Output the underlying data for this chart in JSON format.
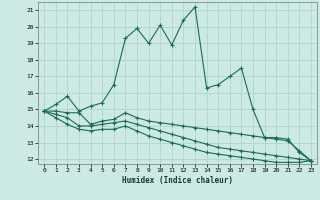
{
  "xlabel": "Humidex (Indice chaleur)",
  "background_color": "#cde9e4",
  "grid_color": "#afd4ce",
  "line_color": "#1a6b5a",
  "xlim": [
    -0.5,
    23.5
  ],
  "ylim": [
    11.7,
    21.5
  ],
  "yticks": [
    12,
    13,
    14,
    15,
    16,
    17,
    18,
    19,
    20,
    21
  ],
  "xticks": [
    0,
    1,
    2,
    3,
    4,
    5,
    6,
    7,
    8,
    9,
    10,
    11,
    12,
    13,
    14,
    15,
    16,
    17,
    18,
    19,
    20,
    21,
    22,
    23
  ],
  "series1_x": [
    0,
    1,
    2,
    3,
    4,
    5,
    6,
    7,
    8,
    9,
    10,
    11,
    12,
    13,
    14,
    15,
    16,
    17,
    18,
    19,
    20,
    21,
    22,
    23
  ],
  "series1_y": [
    14.9,
    15.3,
    15.8,
    14.9,
    15.2,
    15.4,
    16.5,
    19.3,
    19.9,
    19.0,
    20.1,
    18.9,
    20.4,
    21.2,
    16.3,
    16.5,
    17.0,
    17.5,
    15.0,
    13.3,
    13.3,
    13.2,
    12.4,
    11.9
  ],
  "series2_x": [
    0,
    1,
    2,
    3,
    4,
    5,
    6,
    7,
    8,
    9,
    10,
    11,
    12,
    13,
    14,
    15,
    16,
    17,
    18,
    19,
    20,
    21,
    22,
    23
  ],
  "series2_y": [
    14.9,
    14.9,
    14.8,
    14.8,
    14.1,
    14.3,
    14.4,
    14.8,
    14.5,
    14.3,
    14.2,
    14.1,
    14.0,
    13.9,
    13.8,
    13.7,
    13.6,
    13.5,
    13.4,
    13.3,
    13.2,
    13.1,
    12.5,
    11.9
  ],
  "series3_x": [
    0,
    1,
    2,
    3,
    4,
    5,
    6,
    7,
    8,
    9,
    10,
    11,
    12,
    13,
    14,
    15,
    16,
    17,
    18,
    19,
    20,
    21,
    22,
    23
  ],
  "series3_y": [
    14.9,
    14.7,
    14.5,
    14.0,
    14.0,
    14.1,
    14.2,
    14.3,
    14.1,
    13.9,
    13.7,
    13.5,
    13.3,
    13.1,
    12.9,
    12.7,
    12.6,
    12.5,
    12.4,
    12.3,
    12.2,
    12.1,
    12.0,
    11.9
  ],
  "series4_x": [
    0,
    1,
    2,
    3,
    4,
    5,
    6,
    7,
    8,
    9,
    10,
    11,
    12,
    13,
    14,
    15,
    16,
    17,
    18,
    19,
    20,
    21,
    22,
    23
  ],
  "series4_y": [
    14.9,
    14.5,
    14.1,
    13.8,
    13.7,
    13.8,
    13.8,
    14.0,
    13.7,
    13.4,
    13.2,
    13.0,
    12.8,
    12.6,
    12.4,
    12.3,
    12.2,
    12.1,
    12.0,
    11.9,
    11.8,
    11.8,
    11.8,
    11.9
  ]
}
